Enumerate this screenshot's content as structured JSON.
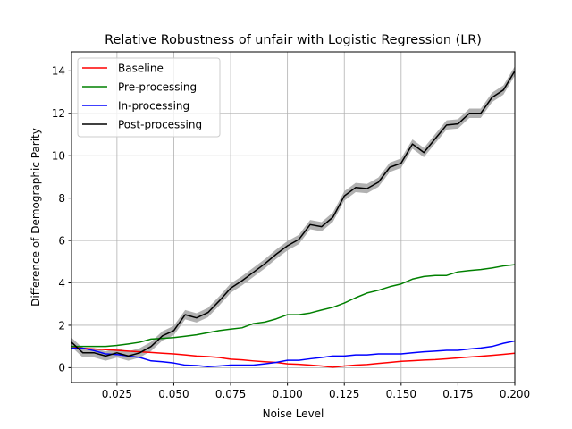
{
  "chart_data": {
    "type": "line",
    "title": "Relative Robustness of unfair with Logistic Regression (LR)",
    "xlabel": "Noise Level",
    "ylabel": "Difference of Demographic Parity",
    "xlim": [
      0.005,
      0.2
    ],
    "ylim": [
      -0.7,
      14.9
    ],
    "xticks": [
      0.025,
      0.05,
      0.075,
      0.1,
      0.125,
      0.15,
      0.175,
      0.2
    ],
    "xtick_labels": [
      "0.025",
      "0.050",
      "0.075",
      "0.100",
      "0.125",
      "0.150",
      "0.175",
      "0.200"
    ],
    "yticks": [
      0,
      2,
      4,
      6,
      8,
      10,
      12,
      14
    ],
    "ytick_labels": [
      "0",
      "2",
      "4",
      "6",
      "8",
      "10",
      "12",
      "14"
    ],
    "grid": true,
    "legend_position": "top-left",
    "x": [
      0.005,
      0.01,
      0.015,
      0.02,
      0.025,
      0.03,
      0.035,
      0.04,
      0.045,
      0.05,
      0.055,
      0.06,
      0.065,
      0.07,
      0.075,
      0.08,
      0.085,
      0.09,
      0.095,
      0.1,
      0.105,
      0.11,
      0.115,
      0.12,
      0.125,
      0.13,
      0.135,
      0.14,
      0.145,
      0.15,
      0.155,
      0.16,
      0.165,
      0.17,
      0.175,
      0.18,
      0.185,
      0.19,
      0.195,
      0.2
    ],
    "series": [
      {
        "name": "Baseline",
        "color": "#ff0000",
        "values": [
          1.0,
          0.92,
          0.88,
          0.85,
          0.82,
          0.78,
          0.75,
          0.72,
          0.68,
          0.65,
          0.6,
          0.55,
          0.52,
          0.48,
          0.4,
          0.37,
          0.32,
          0.28,
          0.25,
          0.18,
          0.16,
          0.12,
          0.08,
          0.02,
          0.08,
          0.12,
          0.15,
          0.2,
          0.25,
          0.3,
          0.33,
          0.36,
          0.38,
          0.42,
          0.46,
          0.5,
          0.54,
          0.58,
          0.63,
          0.68
        ]
      },
      {
        "name": "Pre-processing",
        "color": "#008000",
        "values": [
          1.0,
          1.0,
          1.0,
          1.0,
          1.05,
          1.12,
          1.2,
          1.35,
          1.38,
          1.42,
          1.48,
          1.55,
          1.65,
          1.75,
          1.82,
          1.88,
          2.08,
          2.15,
          2.3,
          2.5,
          2.5,
          2.58,
          2.72,
          2.85,
          3.05,
          3.3,
          3.52,
          3.65,
          3.82,
          3.95,
          4.18,
          4.3,
          4.35,
          4.35,
          4.52,
          4.58,
          4.63,
          4.7,
          4.8,
          4.86
        ]
      },
      {
        "name": "In-processing",
        "color": "#0000ff",
        "values": [
          0.92,
          0.92,
          0.8,
          0.65,
          0.62,
          0.55,
          0.48,
          0.32,
          0.28,
          0.22,
          0.12,
          0.1,
          0.05,
          0.08,
          0.12,
          0.12,
          0.12,
          0.18,
          0.25,
          0.35,
          0.35,
          0.42,
          0.48,
          0.55,
          0.55,
          0.6,
          0.6,
          0.65,
          0.65,
          0.65,
          0.7,
          0.75,
          0.78,
          0.82,
          0.82,
          0.88,
          0.93,
          1.0,
          1.15,
          1.26
        ]
      },
      {
        "name": "Post-processing",
        "color": "#000000",
        "band": true,
        "values": [
          1.2,
          0.7,
          0.7,
          0.55,
          0.7,
          0.55,
          0.7,
          1.0,
          1.5,
          1.75,
          2.5,
          2.35,
          2.6,
          3.15,
          3.75,
          4.1,
          4.5,
          4.9,
          5.35,
          5.75,
          6.05,
          6.75,
          6.65,
          7.1,
          8.1,
          8.5,
          8.45,
          8.75,
          9.45,
          9.65,
          10.55,
          10.15,
          10.8,
          11.45,
          11.5,
          12.0,
          12.0,
          12.75,
          13.1,
          14.0
        ]
      }
    ]
  }
}
